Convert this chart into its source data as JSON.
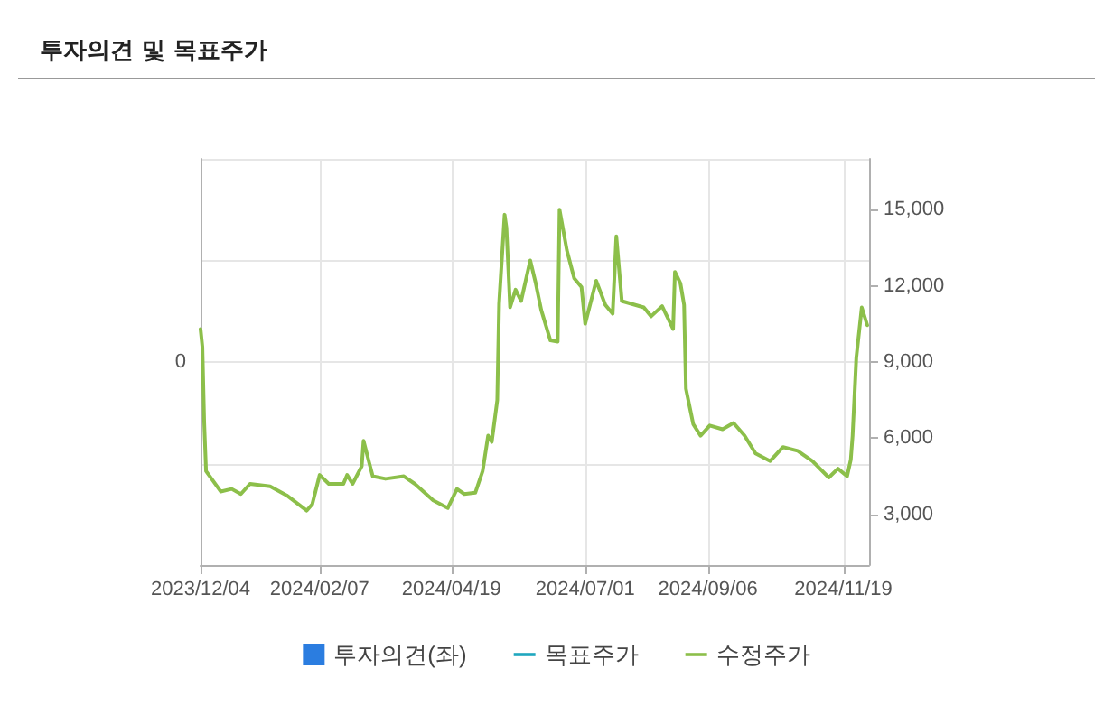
{
  "chart_data": {
    "type": "line",
    "title": "투자의견 및 목표주가",
    "annotations": [
      "0"
    ],
    "xlim": [
      "2023-12-04",
      "2024-12-03"
    ],
    "xticks": [
      {
        "value": "2023-12-04",
        "label": "2023/12/04"
      },
      {
        "value": "2024-02-07",
        "label": "2024/02/07"
      },
      {
        "value": "2024-04-19",
        "label": "2024/04/19"
      },
      {
        "value": "2024-07-01",
        "label": "2024/07/01"
      },
      {
        "value": "2024-09-06",
        "label": "2024/09/06"
      },
      {
        "value": "2024-11-19",
        "label": "2024/11/19"
      }
    ],
    "y2lim": [
      1000,
      17000
    ],
    "y2ticks": [
      {
        "value": 3000,
        "label": "3,000"
      },
      {
        "value": 6000,
        "label": "6,000"
      },
      {
        "value": 9000,
        "label": "9,000"
      },
      {
        "value": 12000,
        "label": "12,000"
      },
      {
        "value": 15000,
        "label": "15,000"
      }
    ],
    "grid": true,
    "legend": "bottom",
    "marker": "none",
    "line_style": "solid",
    "series": [
      {
        "name": "투자의견(좌)",
        "type": "bar",
        "color": "#2b7de0"
      },
      {
        "name": "목표주가",
        "color": "#1fa7bf",
        "axis": "y2"
      },
      {
        "name": "수정주가",
        "color": "#8cbf4a",
        "axis": "y2",
        "x": [
          "2023-12-04",
          "2023-12-05",
          "2023-12-06",
          "2023-12-07",
          "2023-12-15",
          "2023-12-21",
          "2023-12-26",
          "2023-12-31",
          "2024-01-11",
          "2024-01-20",
          "2024-01-31",
          "2024-02-03",
          "2024-02-07",
          "2024-02-12",
          "2024-02-20",
          "2024-02-22",
          "2024-02-25",
          "2024-03-01",
          "2024-03-02",
          "2024-03-05",
          "2024-03-07",
          "2024-03-14",
          "2024-03-24",
          "2024-03-30",
          "2024-04-09",
          "2024-04-17",
          "2024-04-22",
          "2024-04-26",
          "2024-05-02",
          "2024-05-06",
          "2024-05-09",
          "2024-05-11",
          "2024-05-14",
          "2024-05-15",
          "2024-05-18",
          "2024-05-19",
          "2024-05-21",
          "2024-05-24",
          "2024-05-27",
          "2024-06-01",
          "2024-06-04",
          "2024-06-07",
          "2024-06-12",
          "2024-06-16",
          "2024-06-17",
          "2024-06-21",
          "2024-06-25",
          "2024-06-29",
          "2024-07-01",
          "2024-07-07",
          "2024-07-12",
          "2024-07-16",
          "2024-07-18",
          "2024-07-21",
          "2024-08-02",
          "2024-08-06",
          "2024-08-12",
          "2024-08-18",
          "2024-08-19",
          "2024-08-22",
          "2024-08-24",
          "2024-08-25",
          "2024-08-29",
          "2024-09-02",
          "2024-09-07",
          "2024-09-14",
          "2024-09-20",
          "2024-09-26",
          "2024-10-02",
          "2024-10-10",
          "2024-10-17",
          "2024-10-25",
          "2024-11-02",
          "2024-11-11",
          "2024-11-16",
          "2024-11-21",
          "2024-11-23",
          "2024-11-24",
          "2024-11-26",
          "2024-11-29",
          "2024-12-02"
        ],
        "values": [
          10300,
          9600,
          6600,
          4700,
          3900,
          4000,
          3800,
          4200,
          4100,
          3750,
          3150,
          3400,
          4550,
          4200,
          4200,
          4550,
          4200,
          4900,
          5900,
          5050,
          4500,
          4400,
          4500,
          4200,
          3550,
          3250,
          4000,
          3800,
          3850,
          4700,
          6100,
          5850,
          7500,
          11300,
          14800,
          14300,
          11150,
          11850,
          11400,
          13000,
          12100,
          11050,
          9850,
          9800,
          15000,
          13400,
          12300,
          11950,
          10500,
          12200,
          11250,
          10900,
          13950,
          11400,
          11150,
          10800,
          11200,
          10300,
          12550,
          12100,
          11250,
          7950,
          6550,
          6100,
          6500,
          6350,
          6600,
          6100,
          5400,
          5100,
          5650,
          5500,
          5100,
          4450,
          4800,
          4500,
          5150,
          6100,
          9150,
          11150,
          10450
        ]
      }
    ]
  }
}
